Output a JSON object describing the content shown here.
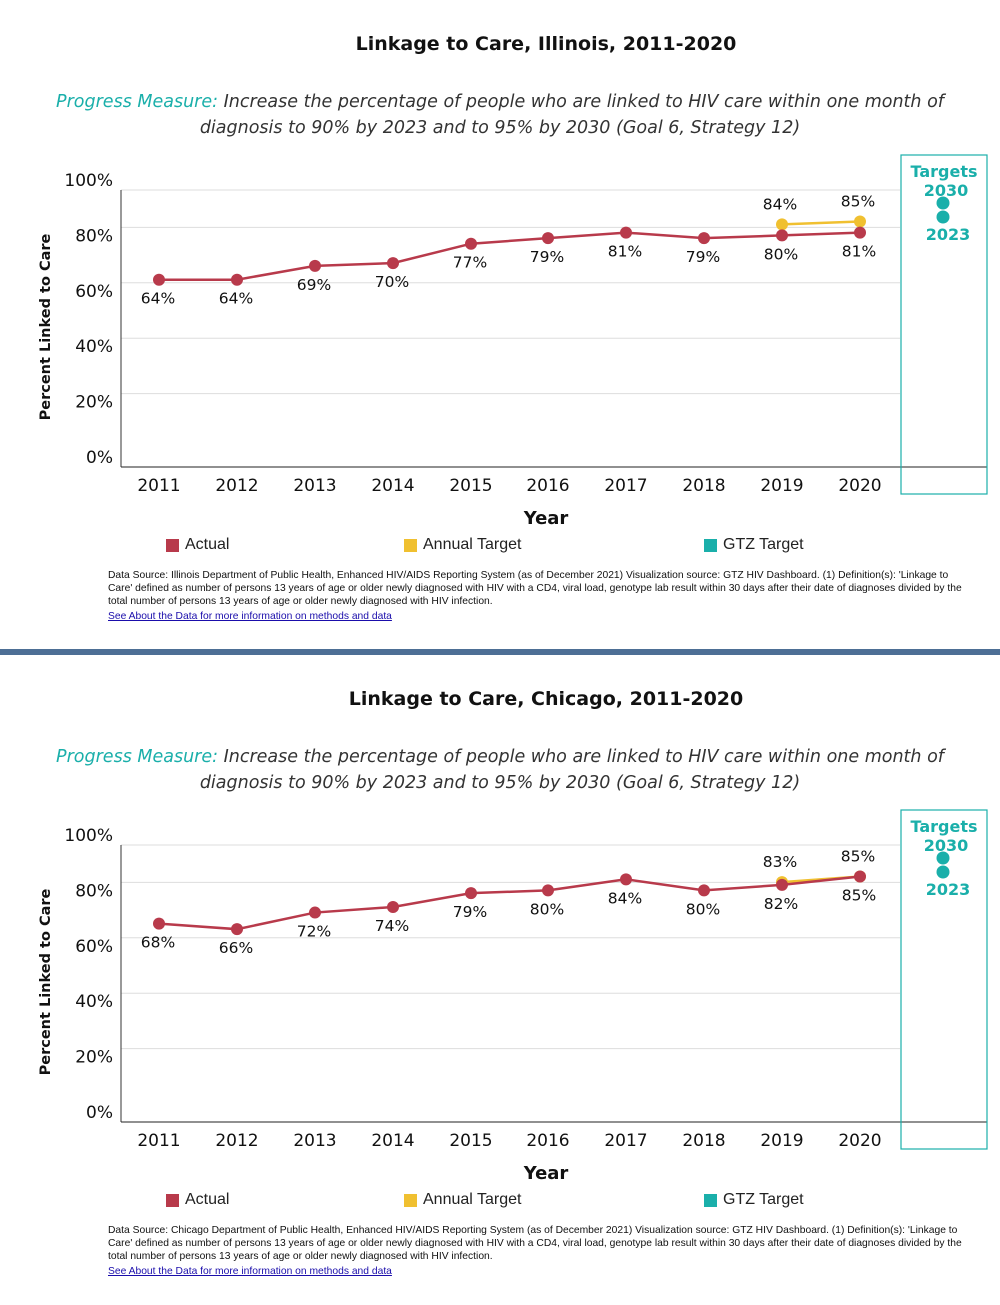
{
  "colors": {
    "actual": "#b83a4b",
    "annual_target": "#f0c030",
    "gtz_target": "#1aafaa",
    "divider": "#4d6f95"
  },
  "legend": {
    "actual": "Actual",
    "annual_target": "Annual Target",
    "gtz_target": "GTZ Target"
  },
  "panels": [
    {
      "title": "Linkage to Care, Illinois, 2011-2020",
      "measure_label": "Progress Measure:",
      "measure_text": " Increase the percentage of people who are linked to HIV care within one month of diagnosis to 90% by 2023 and to 95% by 2030 (Goal 6, Strategy 12)",
      "source": "Data Source: Illinois Department of Public Health, Enhanced HIV/AIDS Reporting System (as of December 2021) Visualization source: GTZ HIV Dashboard. (1) Definition(s): 'Linkage to Care' defined as number of persons 13 years of age or older newly diagnosed with HIV with a CD4, viral load, genotype lab result within 30 days after their date of diagnoses divided by the total number of persons 13 years of age or older newly diagnosed with HIV infection.",
      "link": "See About the Data for more information on methods and data"
    },
    {
      "title": "Linkage to Care, Chicago, 2011-2020",
      "measure_label": "Progress Measure:",
      "measure_text": " Increase the percentage of people who are linked to HIV care within one month of diagnosis to 90% by 2023 and to 95% by 2030 (Goal 6, Strategy 12)",
      "source": "Data Source: Chicago Department of Public Health, Enhanced HIV/AIDS Reporting System (as of December 2021) Visualization source: GTZ HIV Dashboard. (1) Definition(s): 'Linkage to Care' defined as number of persons 13 years of age or older newly diagnosed with HIV with a CD4, viral load, genotype lab result within 30 days after their date of diagnoses divided by the total number of persons 13 years of age or older newly diagnosed with HIV infection.",
      "link": "See About the Data for more information on methods and data"
    }
  ],
  "chart_data": [
    {
      "type": "line",
      "title": "Linkage to Care, Illinois, 2011-2020",
      "xlabel": "Year",
      "ylabel": "Percent Linked to Care",
      "ylim": [
        0,
        100
      ],
      "yticks": [
        "0%",
        "20%",
        "40%",
        "60%",
        "80%",
        "100%"
      ],
      "categories": [
        "2011",
        "2012",
        "2013",
        "2014",
        "2015",
        "2016",
        "2017",
        "2018",
        "2019",
        "2020"
      ],
      "series": [
        {
          "name": "Actual",
          "values": [
            64,
            64,
            69,
            70,
            77,
            79,
            81,
            79,
            80,
            81
          ],
          "labels": [
            "64%",
            "64%",
            "69%",
            "70%",
            "77%",
            "79%",
            "81%",
            "79%",
            "80%",
            "81%"
          ]
        },
        {
          "name": "Annual Target",
          "x": [
            "2019",
            "2020"
          ],
          "values": [
            84,
            85
          ],
          "labels": [
            "84%",
            "85%"
          ]
        }
      ],
      "targets": {
        "header": "Targets",
        "items": [
          {
            "label": "2030",
            "value": 95
          },
          {
            "label": "2023",
            "value": 90
          }
        ]
      },
      "grid": true
    },
    {
      "type": "line",
      "title": "Linkage to Care, Chicago, 2011-2020",
      "xlabel": "Year",
      "ylabel": "Percent Linked to Care",
      "ylim": [
        0,
        100
      ],
      "yticks": [
        "0%",
        "20%",
        "40%",
        "60%",
        "80%",
        "100%"
      ],
      "categories": [
        "2011",
        "2012",
        "2013",
        "2014",
        "2015",
        "2016",
        "2017",
        "2018",
        "2019",
        "2020"
      ],
      "series": [
        {
          "name": "Actual",
          "values": [
            68,
            66,
            72,
            74,
            79,
            80,
            84,
            80,
            82,
            85
          ],
          "labels": [
            "68%",
            "66%",
            "72%",
            "74%",
            "79%",
            "80%",
            "84%",
            "80%",
            "82%",
            "85%"
          ]
        },
        {
          "name": "Annual Target",
          "x": [
            "2019",
            "2020"
          ],
          "values": [
            83,
            85
          ],
          "labels": [
            "83%",
            "85%"
          ]
        }
      ],
      "targets": {
        "header": "Targets",
        "items": [
          {
            "label": "2030",
            "value": 95
          },
          {
            "label": "2023",
            "value": 90
          }
        ]
      },
      "grid": true
    }
  ]
}
